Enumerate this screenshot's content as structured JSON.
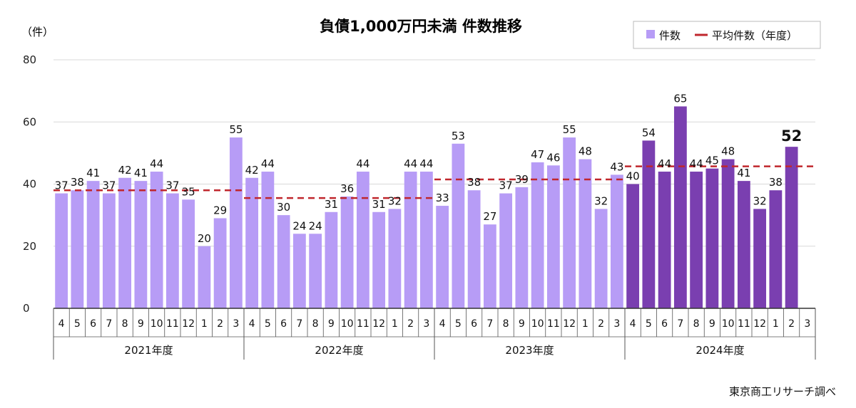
{
  "chart_data": {
    "type": "bar",
    "title": "負債1,000万円未満 件数推移",
    "ylabel": "（件）",
    "ylim": [
      0,
      80
    ],
    "yticks": [
      "0",
      "20",
      "40",
      "60",
      "80"
    ],
    "legend": {
      "placement": "top-right",
      "bar_label": "件数",
      "line_label": "平均件数（年度）"
    },
    "source": "東京商工リサーチ調べ",
    "grid": true,
    "colors": {
      "bar_light": "#b79cf6",
      "bar_dark": "#7a3fb0",
      "avg_line": "#c0272d",
      "grid": "#d9d9d9",
      "axis": "#333333"
    },
    "years": [
      {
        "label": "2021年度",
        "months": [
          "4",
          "5",
          "6",
          "7",
          "8",
          "9",
          "10",
          "11",
          "12",
          "1",
          "2",
          "3"
        ],
        "values": [
          37,
          38,
          41,
          37,
          42,
          41,
          44,
          37,
          35,
          20,
          29,
          55
        ],
        "average": 38,
        "style": "light"
      },
      {
        "label": "2022年度",
        "months": [
          "4",
          "5",
          "6",
          "7",
          "8",
          "9",
          "10",
          "11",
          "12",
          "1",
          "2",
          "3"
        ],
        "values": [
          42,
          44,
          30,
          24,
          24,
          31,
          36,
          44,
          31,
          32,
          44,
          44
        ],
        "average": 35.5,
        "style": "light"
      },
      {
        "label": "2023年度",
        "months": [
          "4",
          "5",
          "6",
          "7",
          "8",
          "9",
          "10",
          "11",
          "12",
          "1",
          "2",
          "3"
        ],
        "values": [
          33,
          53,
          38,
          27,
          37,
          39,
          47,
          46,
          55,
          48,
          32,
          43
        ],
        "average": 41.5,
        "style": "light"
      },
      {
        "label": "2024年度",
        "months": [
          "4",
          "5",
          "6",
          "7",
          "8",
          "9",
          "10",
          "11",
          "12",
          "1",
          "2",
          "3"
        ],
        "values": [
          40,
          54,
          44,
          65,
          44,
          45,
          48,
          41,
          32,
          38,
          52,
          null
        ],
        "average": 45.7,
        "style": "dark",
        "emphasized_month": "2"
      }
    ]
  }
}
